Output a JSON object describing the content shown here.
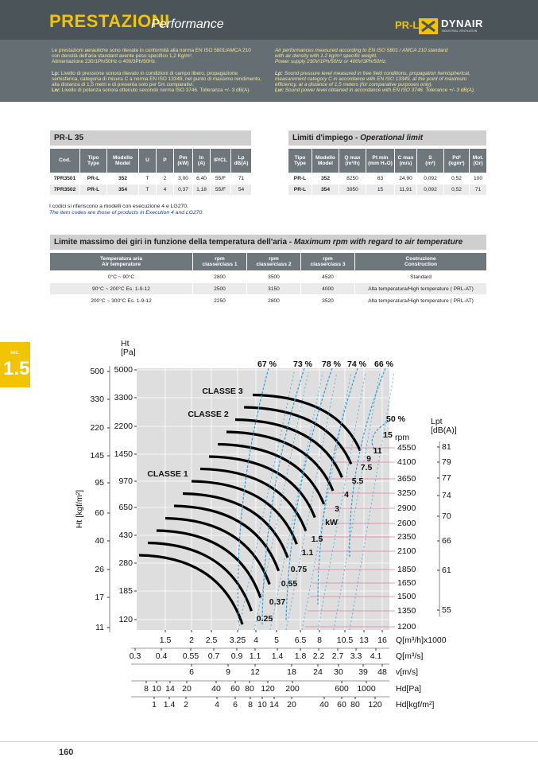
{
  "header": {
    "title": "PRESTAZIONI",
    "subtitle": "Performance",
    "product": "PR-L",
    "brand": "DYNAIR",
    "brand_tagline": "INDUSTRIAL VENTILATION"
  },
  "intro": {
    "it": [
      "Le prestazioni aerauliche sono rilevate in conformità alla norma EN ISO 5801/AMCA 210",
      "con densità dell'aria standard avente peso  specifico 1,2 Kg/m³.",
      "Alimentazione 230/1Ph/50Hz o 400/3Ph/50Hz.",
      "Lp: Livello di pressione sonora rilevato in condizioni di campo libero, propagazione",
      "semisferica, categoria di misura C a norma EN ISO 13349, nel punto di massimo rendimento,",
      "alla distanza di 1,5 metri e di presenta solo per 5m comparativi.",
      "Lw: Livello di potenza sonora ottenuto secondo norma ISO 3746. Tolleranza +/- 3 dB(A)."
    ],
    "en": [
      "Air performances measured according to EN ISO 5801 / AMCA 210 standard",
      "with air density with 1.2 kg/m³ specific weight.",
      "Power supply 230V/1Ph/50Hz or 400V/3Ph/50Hz.",
      "Lp: Sound pressure level measured in free field conditions, propagation hemispherical,",
      "measurement category C in accordance with EN ISO 13349, at the point of maximum",
      "efficiency, at a distance of 1,5 meters (for comparative purposes only).",
      "Lw: Sound power level obtained in accordance with EN ISO 3746. Tolerance +/- 3 dB(A)."
    ]
  },
  "table1": {
    "title": "PR-L 35",
    "headers": [
      "Cod.",
      "Tipo\nType",
      "Modello\nModel",
      "U",
      "P",
      "Pm\n(kW)",
      "In\n(A)",
      "IP/CL",
      "Lp\ndB(A)"
    ],
    "rows": [
      [
        "7PR3501",
        "PR-L",
        "352",
        "T",
        "2",
        "3,00",
        "6,40",
        "55/F",
        "71"
      ],
      [
        "7PR3502",
        "PR-L",
        "354",
        "T",
        "4",
        "0,37",
        "1,18",
        "55/F",
        "54"
      ]
    ]
  },
  "table2": {
    "title": "Limiti d'impiego - ",
    "title_en": "Operational limit",
    "headers": [
      "Tipo\nType",
      "Modello\nModel",
      "Q max\n(m³/h)",
      "Pt min\n(mm H₂O)",
      "C max\n(m/s)",
      "S\n(m²)",
      "Pd²\n(kgm²)",
      "Mot.\n(Gr)"
    ],
    "rows": [
      [
        "PR-L",
        "352",
        "8250",
        "63",
        "24,90",
        "0,092",
        "0,52",
        "100"
      ],
      [
        "PR-L",
        "354",
        "3950",
        "15",
        "11,91",
        "0,092",
        "0,52",
        "71"
      ]
    ]
  },
  "notes": [
    "I codici si riferiscono a modelli con esecuzione 4 e LG270.",
    "The item codes are those of products in Execution 4 and LG270."
  ],
  "table3": {
    "title": "Limite massimo dei giri in funzione della temperatura dell'aria - ",
    "title_en": "Maximum rpm with regard to air temperature",
    "headers": [
      "Temperatura aria\nAir temperature",
      "rpm\nclasse/class 1",
      "rpm\nclasse/class 2",
      "rpm\nclasse/class 3",
      "Costruzione\nConstruction"
    ],
    "rows": [
      [
        "0°C ~ 90°C",
        "2800",
        "3500",
        "4520",
        "Standard"
      ],
      [
        "90°C ~ 200°C Es. 1-9-12",
        "2500",
        "3150",
        "4000",
        "Alta temperatura/High temperature ( PRL-AT)"
      ],
      [
        "200°C ~ 300°C Es. 1-9-12",
        "2250",
        "2800",
        "3520",
        "Alta temperatura/High temperature ( PRL-AT)"
      ]
    ]
  },
  "section": {
    "label": "sez.",
    "number": "1.5"
  },
  "chart": {
    "y_title": "Ht\n[Pa]",
    "y2_title": "Ht [kgf/m²]",
    "pa_ticks": [
      "5000",
      "3300",
      "2200",
      "1450",
      "970",
      "650",
      "430",
      "280",
      "185",
      "120"
    ],
    "kgf_ticks": [
      "500",
      "330",
      "220",
      "145",
      "95",
      "60",
      "40",
      "26",
      "17",
      "11"
    ],
    "rpm_title": "rpm",
    "rpm_ticks": [
      "4550",
      "4100",
      "3650",
      "3250",
      "2900",
      "2600",
      "2350",
      "2100",
      "1850",
      "1650",
      "1500",
      "1350",
      "1200"
    ],
    "lpt_title": "Lpt\n[dB(A)]",
    "lpt_ticks": [
      "81",
      "79",
      "77",
      "74",
      "70",
      "66",
      "61",
      "55"
    ],
    "efficiency": [
      "67 %",
      "73 %",
      "78 %",
      "74 %",
      "66 %",
      "50 %"
    ],
    "classes": [
      "CLASSE 3",
      "CLASSE 2",
      "CLASSE 1"
    ],
    "power": [
      "15",
      "11",
      "9",
      "7.5",
      "5.5",
      "4",
      "3",
      "1.5",
      "1.1",
      "0.75",
      "0.55",
      "0.37",
      "0.25"
    ],
    "power_unit": "kW",
    "q_m3h": {
      "label": "Q[m³/h]x1000",
      "ticks": [
        "1.5",
        "2",
        "2.5",
        "3.25",
        "4",
        "5",
        "6.5",
        "8",
        "10.5",
        "13",
        "16"
      ]
    },
    "q_m3s": {
      "label": "Q[m³/s]",
      "ticks": [
        "0.3",
        "0.4",
        "0.55",
        "0.7",
        "0.9",
        "1.1",
        "1.4",
        "1.8",
        "2.2",
        "2.7",
        "3.3",
        "4.1"
      ]
    },
    "v": {
      "label": "v[m/s]",
      "ticks": [
        "6",
        "9",
        "12",
        "18",
        "24",
        "30",
        "39",
        "48"
      ]
    },
    "hd_pa": {
      "label": "Hd[Pa]",
      "ticks": [
        "8",
        "10",
        "14",
        "20",
        "40",
        "60",
        "80",
        "120",
        "200",
        "600",
        "1000"
      ]
    },
    "hd_kgf": {
      "label": "Hd[kgf/m²]",
      "ticks": [
        "1",
        "1.4",
        "2",
        "4",
        "6",
        "8",
        "10",
        "14",
        "20",
        "40",
        "60",
        "80",
        "120"
      ]
    }
  },
  "page_number": "160"
}
